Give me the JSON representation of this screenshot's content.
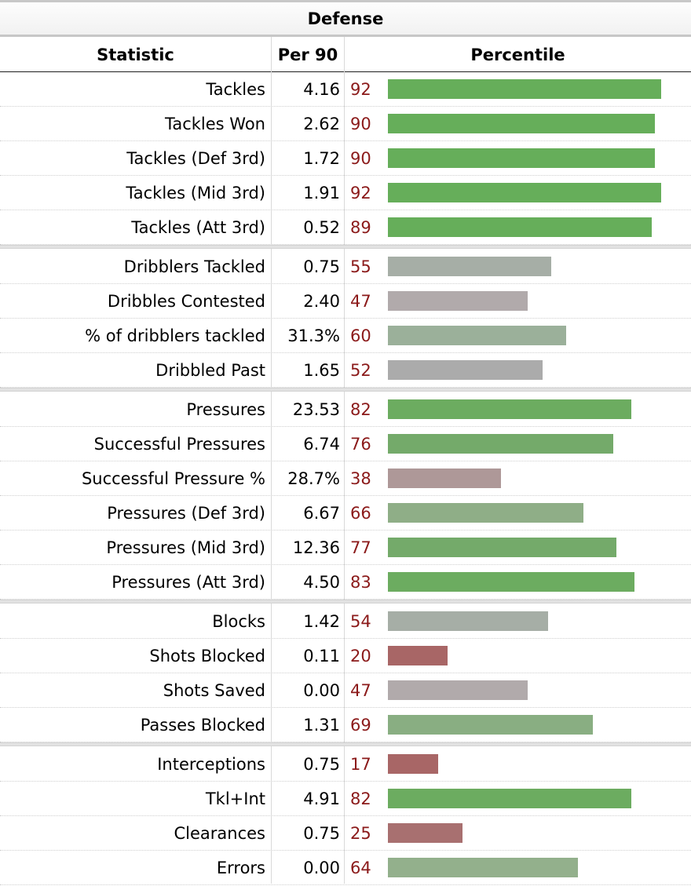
{
  "table": {
    "title": "Defense",
    "headers": {
      "statistic": "Statistic",
      "per90": "Per 90",
      "percentile": "Percentile"
    },
    "groups": [
      [
        {
          "stat": "Tackles",
          "per90": "4.16",
          "pct": 92,
          "color": "#66ae5a"
        },
        {
          "stat": "Tackles Won",
          "per90": "2.62",
          "pct": 90,
          "color": "#66ae5a"
        },
        {
          "stat": "Tackles (Def 3rd)",
          "per90": "1.72",
          "pct": 90,
          "color": "#66ae5a"
        },
        {
          "stat": "Tackles (Mid 3rd)",
          "per90": "1.91",
          "pct": 92,
          "color": "#66ae5a"
        },
        {
          "stat": "Tackles (Att 3rd)",
          "per90": "0.52",
          "pct": 89,
          "color": "#66ae5a"
        }
      ],
      [
        {
          "stat": "Dribblers Tackled",
          "per90": "0.75",
          "pct": 55,
          "color": "#a6aea6"
        },
        {
          "stat": "Dribbles Contested",
          "per90": "2.40",
          "pct": 47,
          "color": "#b1aaab"
        },
        {
          "stat": "% of dribblers tackled",
          "per90": "31.3%",
          "pct": 60,
          "color": "#9bb09a"
        },
        {
          "stat": "Dribbled Past",
          "per90": "1.65",
          "pct": 52,
          "color": "#ababab"
        }
      ],
      [
        {
          "stat": "Pressures",
          "per90": "23.53",
          "pct": 82,
          "color": "#6cac60"
        },
        {
          "stat": "Successful Pressures",
          "per90": "6.74",
          "pct": 76,
          "color": "#74aa6a"
        },
        {
          "stat": "Successful Pressure %",
          "per90": "28.7%",
          "pct": 38,
          "color": "#ae9898"
        },
        {
          "stat": "Pressures (Def 3rd)",
          "per90": "6.67",
          "pct": 66,
          "color": "#8fae87"
        },
        {
          "stat": "Pressures (Mid 3rd)",
          "per90": "12.36",
          "pct": 77,
          "color": "#74aa6a"
        },
        {
          "stat": "Pressures (Att 3rd)",
          "per90": "4.50",
          "pct": 83,
          "color": "#6cac60"
        }
      ],
      [
        {
          "stat": "Blocks",
          "per90": "1.42",
          "pct": 54,
          "color": "#a6aea6"
        },
        {
          "stat": "Shots Blocked",
          "per90": "0.11",
          "pct": 20,
          "color": "#a86666"
        },
        {
          "stat": "Shots Saved",
          "per90": "0.00",
          "pct": 47,
          "color": "#b1aaab"
        },
        {
          "stat": "Passes Blocked",
          "per90": "1.31",
          "pct": 69,
          "color": "#89ae82"
        }
      ],
      [
        {
          "stat": "Interceptions",
          "per90": "0.75",
          "pct": 17,
          "color": "#a86666"
        },
        {
          "stat": "Tkl+Int",
          "per90": "4.91",
          "pct": 82,
          "color": "#6cac60"
        },
        {
          "stat": "Clearances",
          "per90": "0.75",
          "pct": 25,
          "color": "#a87070"
        },
        {
          "stat": "Errors",
          "per90": "0.00",
          "pct": 64,
          "color": "#93b08c"
        }
      ]
    ]
  }
}
